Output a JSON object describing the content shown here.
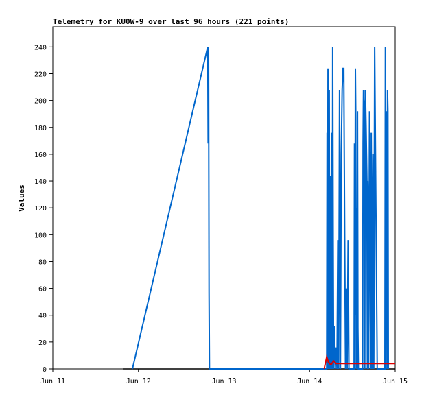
{
  "chart_data": {
    "type": "line",
    "title": "Telemetry for KU0W-9 over last 96 hours (221 points)",
    "xlabel": "",
    "ylabel": "Values",
    "x_ticks": [
      "Jun 11",
      "Jun 12",
      "Jun 13",
      "Jun 14",
      "Jun 15"
    ],
    "x_tick_values": [
      0,
      1,
      2,
      3,
      4
    ],
    "y_ticks": [
      0,
      20,
      40,
      60,
      80,
      100,
      120,
      140,
      160,
      180,
      200,
      220,
      240
    ],
    "xlim": [
      0,
      4
    ],
    "ylim": [
      0,
      255
    ],
    "grid": false,
    "legend": "none",
    "colors": {
      "blue": "#0066cc",
      "red": "#dd0000",
      "black": "#000000"
    },
    "series": [
      {
        "color": "blue",
        "points": [
          [
            0.93,
            0
          ],
          [
            1.81,
            240
          ],
          [
            1.815,
            168
          ],
          [
            1.82,
            240
          ],
          [
            1.825,
            56
          ],
          [
            1.83,
            0
          ],
          [
            3.2,
            0
          ],
          [
            3.205,
            176
          ],
          [
            3.21,
            0
          ],
          [
            3.215,
            224
          ],
          [
            3.22,
            80
          ],
          [
            3.225,
            0
          ],
          [
            3.23,
            208
          ],
          [
            3.235,
            0
          ],
          [
            3.24,
            144
          ],
          [
            3.245,
            0
          ],
          [
            3.25,
            128
          ],
          [
            3.255,
            0
          ],
          [
            3.26,
            176
          ],
          [
            3.265,
            0
          ],
          [
            3.27,
            240
          ],
          [
            3.275,
            96
          ],
          [
            3.28,
            0
          ],
          [
            3.29,
            32
          ],
          [
            3.3,
            0
          ],
          [
            3.31,
            16
          ],
          [
            3.32,
            0
          ],
          [
            3.33,
            96
          ],
          [
            3.34,
            0
          ],
          [
            3.35,
            208
          ],
          [
            3.36,
            0
          ],
          [
            3.37,
            160
          ],
          [
            3.38,
            208
          ],
          [
            3.39,
            224
          ],
          [
            3.4,
            224
          ],
          [
            3.41,
            100
          ],
          [
            3.42,
            0
          ],
          [
            3.43,
            60
          ],
          [
            3.44,
            0
          ],
          [
            3.45,
            96
          ],
          [
            3.46,
            0
          ],
          [
            3.52,
            0
          ],
          [
            3.525,
            168
          ],
          [
            3.53,
            40
          ],
          [
            3.535,
            224
          ],
          [
            3.54,
            188
          ],
          [
            3.545,
            0
          ],
          [
            3.55,
            120
          ],
          [
            3.555,
            0
          ],
          [
            3.56,
            192
          ],
          [
            3.565,
            30
          ],
          [
            3.57,
            0
          ],
          [
            3.62,
            0
          ],
          [
            3.625,
            168
          ],
          [
            3.63,
            208
          ],
          [
            3.635,
            190
          ],
          [
            3.64,
            200
          ],
          [
            3.645,
            0
          ],
          [
            3.65,
            208
          ],
          [
            3.655,
            196
          ],
          [
            3.66,
            180
          ],
          [
            3.665,
            160
          ],
          [
            3.67,
            140
          ],
          [
            3.675,
            0
          ],
          [
            3.68,
            140
          ],
          [
            3.685,
            120
          ],
          [
            3.69,
            0
          ],
          [
            3.7,
            192
          ],
          [
            3.705,
            150
          ],
          [
            3.71,
            40
          ],
          [
            3.715,
            0
          ],
          [
            3.72,
            176
          ],
          [
            3.725,
            120
          ],
          [
            3.73,
            0
          ],
          [
            3.74,
            160
          ],
          [
            3.745,
            80
          ],
          [
            3.75,
            0
          ],
          [
            3.76,
            240
          ],
          [
            3.765,
            200
          ],
          [
            3.77,
            160
          ],
          [
            3.775,
            120
          ],
          [
            3.78,
            80
          ],
          [
            3.785,
            40
          ],
          [
            3.79,
            0
          ],
          [
            3.88,
            0
          ],
          [
            3.885,
            240
          ],
          [
            3.89,
            112
          ],
          [
            3.895,
            192
          ],
          [
            3.9,
            150
          ],
          [
            3.905,
            0
          ],
          [
            3.91,
            208
          ],
          [
            3.915,
            192
          ],
          [
            3.92,
            0
          ]
        ]
      },
      {
        "color": "red",
        "points": [
          [
            3.17,
            0
          ],
          [
            3.2,
            9
          ],
          [
            3.22,
            5
          ],
          [
            3.25,
            3
          ],
          [
            3.28,
            6
          ],
          [
            3.31,
            4
          ],
          [
            3.4,
            4
          ],
          [
            3.6,
            4
          ],
          [
            3.8,
            4
          ],
          [
            4.0,
            4
          ]
        ]
      },
      {
        "color": "black",
        "points": [
          [
            0.82,
            0
          ],
          [
            3.3,
            0
          ],
          [
            4.0,
            0
          ]
        ]
      }
    ]
  }
}
